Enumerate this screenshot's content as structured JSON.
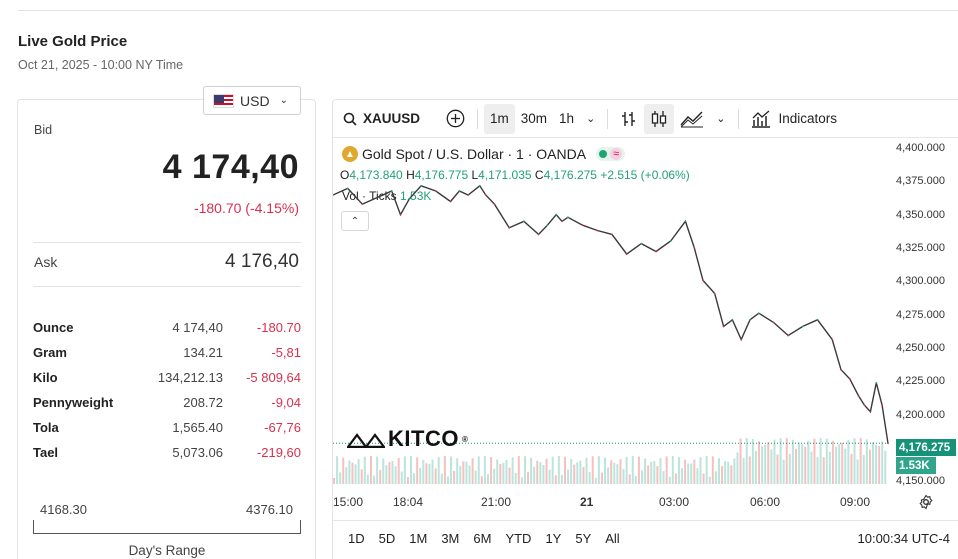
{
  "header": {
    "title": "Live Gold Price",
    "subtitle": "Oct 21, 2025 - 10:00 NY Time"
  },
  "currency": {
    "selected": "USD",
    "flag_icon": "us-flag-icon"
  },
  "price": {
    "bid_label": "Bid",
    "bid": "4 174,40",
    "change": "-180.70 (-4.15%)",
    "ask_label": "Ask",
    "ask": "4 176,40"
  },
  "units": [
    {
      "name": "Ounce",
      "price": "4 174,40",
      "change": "-180.70"
    },
    {
      "name": "Gram",
      "price": "134.21",
      "change": "-5,81"
    },
    {
      "name": "Kilo",
      "price": "134,212.13",
      "change": "-5 809,64"
    },
    {
      "name": "Pennyweight",
      "price": "208.72",
      "change": "-9,04"
    },
    {
      "name": "Tola",
      "price": "1,565.40",
      "change": "-67,76"
    },
    {
      "name": "Tael",
      "price": "5,073.06",
      "change": "-219,60"
    }
  ],
  "days_range": {
    "low": "4168.30",
    "high": "4376.10",
    "label": "Day's Range"
  },
  "toolbar": {
    "symbol": "XAUUSD",
    "intervals": [
      "1m",
      "30m",
      "1h"
    ],
    "active_interval": "1m",
    "indicators_label": "Indicators"
  },
  "legend": {
    "title": "Gold Spot / U.S. Dollar · 1 · OANDA",
    "open_k": "O",
    "open": "4,173.840",
    "high_k": "H",
    "high": "4,176.775",
    "low_k": "L",
    "low": "4,171.035",
    "close_k": "C",
    "close": "4,176.275",
    "change": "+2.515 (+0.06%)",
    "vol_label": "Vol · Ticks",
    "vol_value": "1.53K"
  },
  "logo_text": "KITCO",
  "chart_data": {
    "type": "line",
    "title": "Gold Spot / U.S. Dollar · 1 · OANDA",
    "x_ticks": [
      "15:00",
      "18:04",
      "21:00",
      "21",
      "03:00",
      "06:00",
      "09:00"
    ],
    "y_ticks": [
      "4,400.000",
      "4,375.000",
      "4,350.000",
      "4,325.000",
      "4,300.000",
      "4,275.000",
      "4,250.000",
      "4,225.000",
      "4,200.000",
      "4,150.000"
    ],
    "ylim": [
      4145,
      4400
    ],
    "last_price_label": "4,176.275",
    "last_volume_label": "1.53K",
    "series": [
      {
        "x": [
          0,
          0.5,
          1,
          2,
          2.3,
          2.6,
          3,
          3.5,
          4,
          4.3,
          4.6,
          5,
          5.2,
          5.5,
          6,
          6.5,
          7,
          7.3,
          7.6,
          7.8,
          8,
          8.5,
          9,
          9.5,
          10,
          10.5,
          11,
          11.5,
          12,
          12.3,
          12.6,
          13,
          13.3,
          13.6,
          13.9,
          14.2,
          14.5,
          15,
          15.5,
          16,
          16.5,
          17,
          17.3,
          17.6,
          17.9,
          18.1,
          18.3,
          18.5,
          18.7,
          18.9
        ],
        "y": [
          4365,
          4370,
          4358,
          4368,
          4350,
          4362,
          4372,
          4368,
          4360,
          4368,
          4365,
          4372,
          4365,
          4358,
          4340,
          4345,
          4335,
          4342,
          4350,
          4345,
          4348,
          4342,
          4338,
          4335,
          4320,
          4328,
          4322,
          4330,
          4345,
          4325,
          4300,
          4290,
          4265,
          4270,
          4255,
          4270,
          4275,
          4268,
          4258,
          4265,
          4270,
          4255,
          4232,
          4225,
          4212,
          4205,
          4200,
          4222,
          4205,
          4176
        ]
      }
    ]
  },
  "bottom_ranges": [
    "1D",
    "5D",
    "1M",
    "3M",
    "6M",
    "YTD",
    "1Y",
    "5Y",
    "All"
  ],
  "timestamp": "10:00:34 UTC-4",
  "colors": {
    "down": "#d9304f",
    "up": "#22a07a",
    "price_tag": "#16927a",
    "gold": "#e0a82e"
  }
}
